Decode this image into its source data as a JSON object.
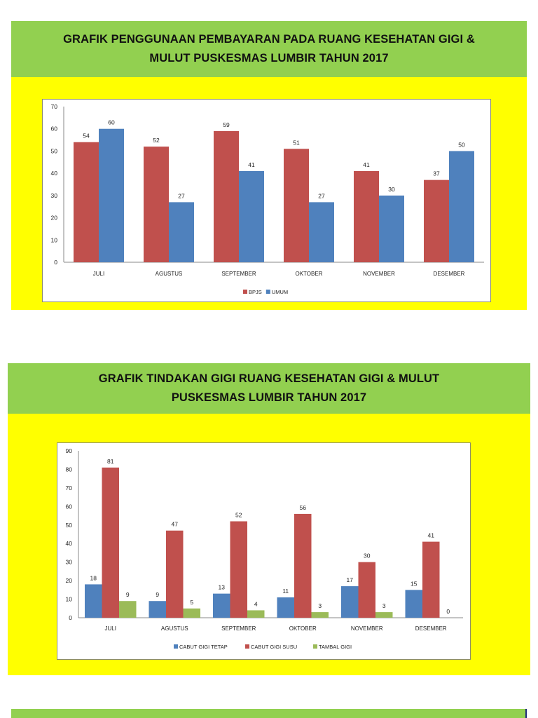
{
  "sections": [
    {
      "title_line1": "GRAFIK PENGGUNAAN PEMBAYARAN PADA RUANG KESEHATAN GIGI &",
      "title_line2": "MULUT PUSKESMAS LUMBIR TAHUN 2017"
    },
    {
      "title_line1": "GRAFIK TINDAKAN GIGI RUANG KESEHATAN GIGI & MULUT",
      "title_line2": "PUSKESMAS LUMBIR TAHUN 2017"
    }
  ],
  "colors": {
    "title_band": "#92d050",
    "chart_background_band": "#ffff00",
    "bpjs": "#c0504d",
    "umum": "#4f81bd",
    "cabut_gigi_tetap": "#4f81bd",
    "cabut_gigi_susu": "#c0504d",
    "tambal_gigi": "#9bbb59"
  },
  "chart_data": [
    {
      "type": "bar",
      "title": "GRAFIK PENGGUNAAN PEMBAYARAN PADA RUANG KESEHATAN GIGI & MULUT PUSKESMAS LUMBIR TAHUN 2017",
      "categories": [
        "JULI",
        "AGUSTUS",
        "SEPTEMBER",
        "OKTOBER",
        "NOVEMBER",
        "DESEMBER"
      ],
      "series": [
        {
          "name": "BPJS",
          "color": "#c0504d",
          "values": [
            54,
            52,
            59,
            51,
            41,
            37
          ]
        },
        {
          "name": "UMUM",
          "color": "#4f81bd",
          "values": [
            60,
            27,
            41,
            27,
            30,
            50
          ]
        }
      ],
      "xlabel": "",
      "ylabel": "",
      "ylim": [
        0,
        70
      ],
      "yticks": [
        "0",
        "10",
        "20",
        "30",
        "40",
        "50",
        "60",
        "70"
      ],
      "grid": false,
      "data_labels": true,
      "legend_position": "bottom"
    },
    {
      "type": "bar",
      "title": "GRAFIK TINDAKAN GIGI RUANG KESEHATAN GIGI & MULUT PUSKESMAS LUMBIR TAHUN 2017",
      "categories": [
        "JULI",
        "AGUSTUS",
        "SEPTEMBER",
        "OKTOBER",
        "NOVEMBER",
        "DESEMBER"
      ],
      "series": [
        {
          "name": "CABUT GIGI TETAP",
          "color": "#4f81bd",
          "values": [
            18,
            9,
            13,
            11,
            17,
            15
          ]
        },
        {
          "name": "CABUT GIGI SUSU",
          "color": "#c0504d",
          "values": [
            81,
            47,
            52,
            56,
            30,
            41
          ]
        },
        {
          "name": "TAMBAL GIGI",
          "color": "#9bbb59",
          "values": [
            9,
            5,
            4,
            3,
            3,
            0
          ]
        }
      ],
      "xlabel": "",
      "ylabel": "",
      "ylim": [
        0,
        90
      ],
      "yticks": [
        "0",
        "10",
        "20",
        "30",
        "40",
        "50",
        "60",
        "70",
        "80",
        "90"
      ],
      "grid": false,
      "data_labels": true,
      "legend_position": "bottom"
    }
  ]
}
